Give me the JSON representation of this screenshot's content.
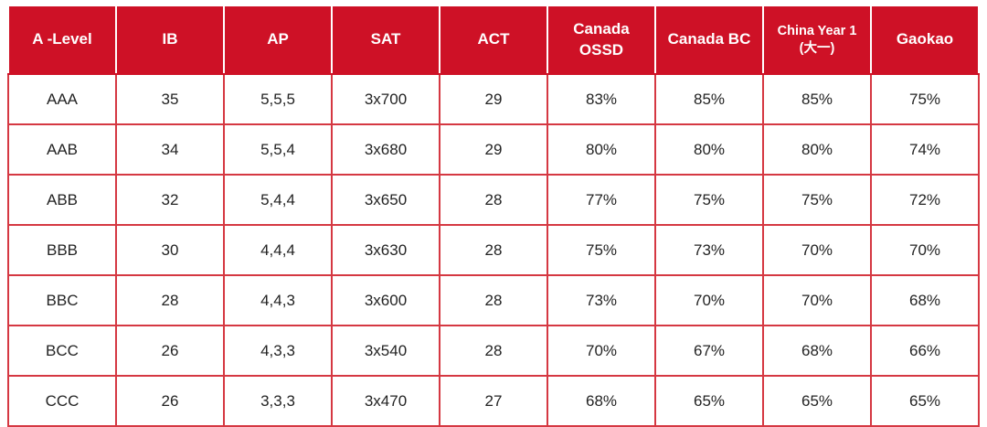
{
  "chart_data": {
    "type": "table",
    "title": "",
    "columns": [
      "A -Level",
      "IB",
      "AP",
      "SAT",
      "ACT",
      "Canada\nOSSD",
      "Canada BC",
      "China Year 1\n(大一)",
      "Gaokao"
    ],
    "rows": [
      [
        "AAA",
        "35",
        "5,5,5",
        "3x700",
        "29",
        "83%",
        "85%",
        "85%",
        "75%"
      ],
      [
        "AAB",
        "34",
        "5,5,4",
        "3x680",
        "29",
        "80%",
        "80%",
        "80%",
        "74%"
      ],
      [
        "ABB",
        "32",
        "5,4,4",
        "3x650",
        "28",
        "77%",
        "75%",
        "75%",
        "72%"
      ],
      [
        "BBB",
        "30",
        "4,4,4",
        "3x630",
        "28",
        "75%",
        "73%",
        "70%",
        "70%"
      ],
      [
        "BBC",
        "28",
        "4,4,3",
        "3x600",
        "28",
        "73%",
        "70%",
        "70%",
        "68%"
      ],
      [
        "BCC",
        "26",
        "4,3,3",
        "3x540",
        "28",
        "70%",
        "67%",
        "68%",
        "66%"
      ],
      [
        "CCC",
        "26",
        "3,3,3",
        "3x470",
        "27",
        "68%",
        "65%",
        "65%",
        "65%"
      ]
    ],
    "layout_hints": {
      "header_background": "#ce1126",
      "header_text_color": "#ffffff",
      "grid_color": "#d53842",
      "body_text_color": "#232323",
      "grid": true
    }
  },
  "colors": {
    "header_red": "#ce1126",
    "grid_red": "#d53842",
    "header_text": "#ffffff",
    "body_text": "#232323"
  }
}
